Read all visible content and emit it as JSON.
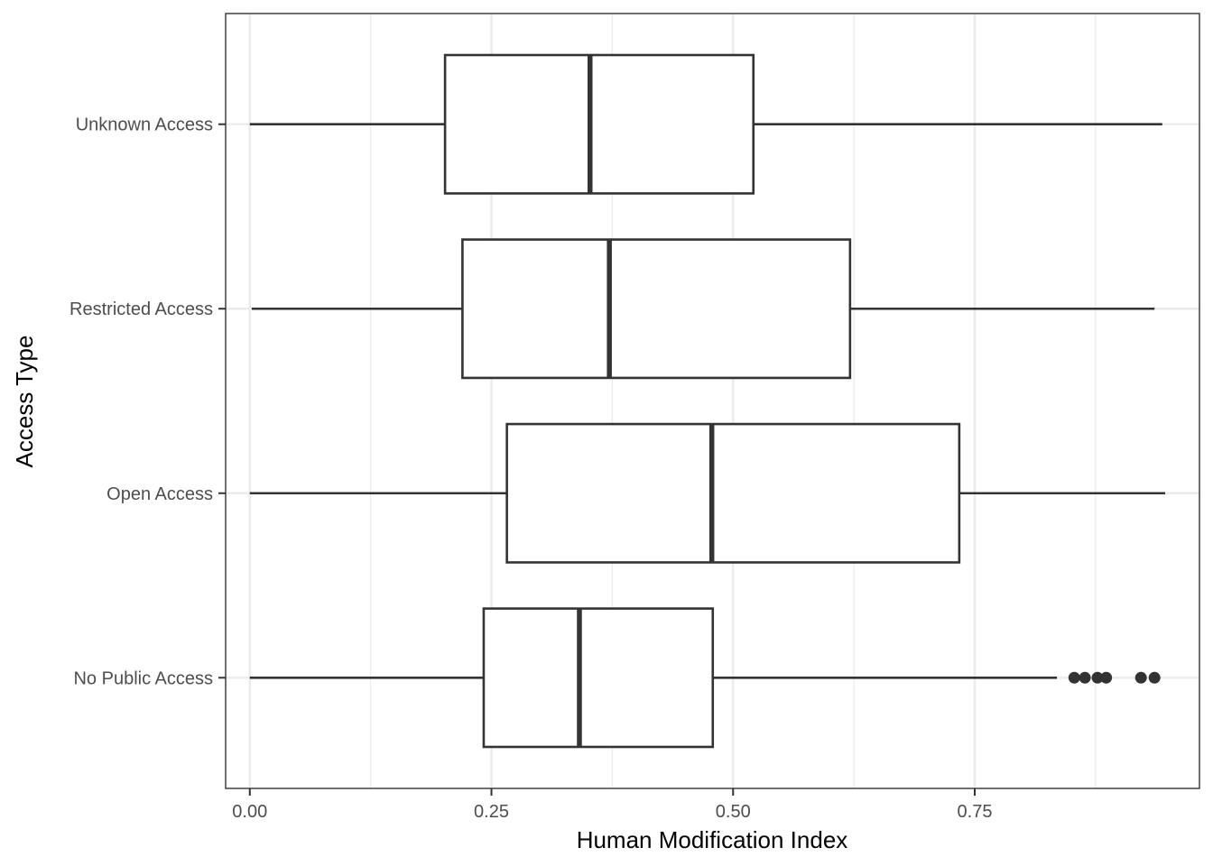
{
  "chart_data": {
    "type": "boxplot",
    "orientation": "horizontal",
    "xlabel": "Human Modification Index",
    "ylabel": "Access Type",
    "xlim": [
      -0.025,
      0.9825
    ],
    "x_ticks": [
      0.0,
      0.25,
      0.5,
      0.75
    ],
    "x_tick_labels": [
      "0.00",
      "0.25",
      "0.50",
      "0.75"
    ],
    "x_minor_ticks": [
      0.125,
      0.375,
      0.625,
      0.875
    ],
    "grid": true,
    "legend": "none",
    "colors": {
      "box_fill": "#ffffff",
      "box_stroke": "#333333",
      "grid": "#ebebeb",
      "panel_border": "#333333"
    },
    "categories": [
      "No Public Access",
      "Open Access",
      "Restricted Access",
      "Unknown Access"
    ],
    "boxes": [
      {
        "category": "No Public Access",
        "whisker_low": 0.0,
        "q1": 0.242,
        "median": 0.341,
        "q3": 0.479,
        "whisker_high": 0.835,
        "outliers": [
          0.853,
          0.864,
          0.877,
          0.886,
          0.922,
          0.936
        ]
      },
      {
        "category": "Open Access",
        "whisker_low": 0.0,
        "q1": 0.266,
        "median": 0.478,
        "q3": 0.734,
        "whisker_high": 0.947,
        "outliers": []
      },
      {
        "category": "Restricted Access",
        "whisker_low": 0.002,
        "q1": 0.22,
        "median": 0.372,
        "q3": 0.621,
        "whisker_high": 0.936,
        "outliers": []
      },
      {
        "category": "Unknown Access",
        "whisker_low": 0.0,
        "q1": 0.202,
        "median": 0.352,
        "q3": 0.521,
        "whisker_high": 0.944,
        "outliers": []
      }
    ]
  }
}
